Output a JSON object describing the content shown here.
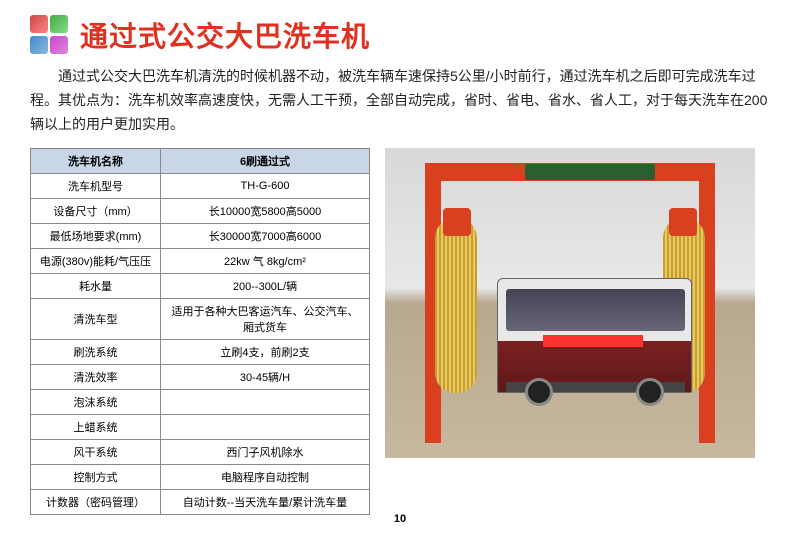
{
  "title": {
    "text": "通过式公交大巴洗车机",
    "color": "#e03020"
  },
  "description": "通过式公交大巴洗车机清洗的时候机器不动，被洗车辆车速保持5公里/小时前行，通过洗车机之后即可完成洗车过程。其优点为：洗车机效率高速度快，无需人工干预，全部自动完成，省时、省电、省水、省人工，对于每天洗车在200辆以上的用户更加实用。",
  "table": {
    "header_bg": "#c8d6e8",
    "border_color": "#888888",
    "font_size": 11,
    "columns": [
      "洗车机名称",
      "6刷通过式"
    ],
    "rows": [
      [
        "洗车机型号",
        "TH-G-600"
      ],
      [
        "设备尺寸（mm）",
        "长10000宽5800高5000"
      ],
      [
        "最低场地要求(mm)",
        "长30000宽7000高6000"
      ],
      [
        "电源(380v)能耗/气压压",
        "22kw 气 8kg/cm²"
      ],
      [
        "耗水量",
        "200--300L/辆"
      ],
      [
        "清洗车型",
        "适用于各种大巴客运汽车、公交汽车、厢式货车"
      ],
      [
        "刷洗系统",
        "立刷4支，前刷2支"
      ],
      [
        "清洗效率",
        "30-45辆/H"
      ],
      [
        "泡沫系统",
        ""
      ],
      [
        "上蜡系统",
        ""
      ],
      [
        "风干系统",
        "西门子风机除水"
      ],
      [
        "控制方式",
        "电脑程序自动控制"
      ],
      [
        "计数器（密码管理）",
        "自动计数--当天洗车量/累计洗车量"
      ]
    ]
  },
  "image": {
    "gantry_color": "#d84020",
    "brush_color_dark": "#c8a030",
    "brush_color_light": "#e8c860",
    "bus_upper": "#e8e8e8",
    "bus_lower": "#7a2020",
    "sign_color": "#2a6030"
  },
  "page_number": "10"
}
